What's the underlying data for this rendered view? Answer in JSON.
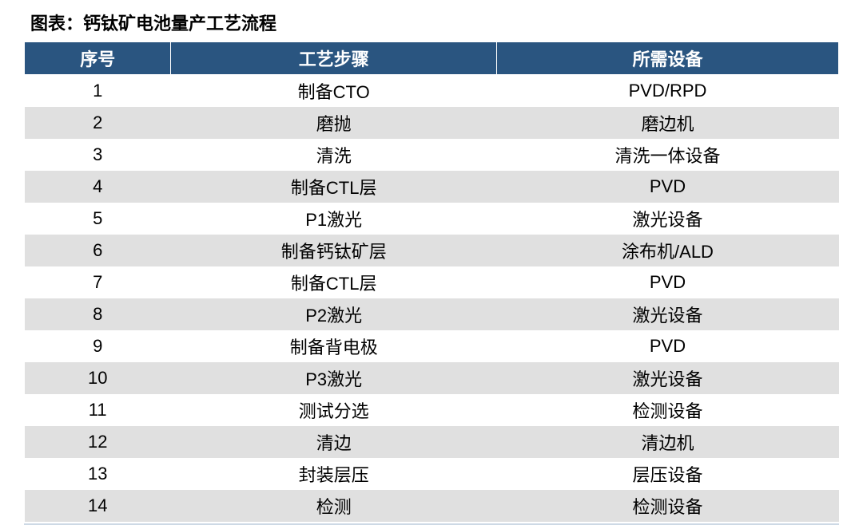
{
  "title": "图表：钙钛矿电池量产工艺流程",
  "table": {
    "type": "table",
    "header_bg": "#2a5580",
    "header_fg": "#ffffff",
    "row_odd_bg": "#ffffff",
    "row_even_bg": "#e0e0e0",
    "title_fontsize": 22,
    "header_fontsize": 22,
    "cell_fontsize": 22,
    "columns": [
      {
        "label": "序号",
        "width_pct": 18,
        "align": "center"
      },
      {
        "label": "工艺步骤",
        "width_pct": 40,
        "align": "center"
      },
      {
        "label": "所需设备",
        "width_pct": 42,
        "align": "center"
      }
    ],
    "rows": [
      [
        "1",
        "制备CTO",
        "PVD/RPD"
      ],
      [
        "2",
        "磨抛",
        "磨边机"
      ],
      [
        "3",
        "清洗",
        "清洗一体设备"
      ],
      [
        "4",
        "制备CTL层",
        "PVD"
      ],
      [
        "5",
        "P1激光",
        "激光设备"
      ],
      [
        "6",
        "制备钙钛矿层",
        "涂布机/ALD"
      ],
      [
        "7",
        "制备CTL层",
        "PVD"
      ],
      [
        "8",
        "P2激光",
        "激光设备"
      ],
      [
        "9",
        "制备背电极",
        "PVD"
      ],
      [
        "10",
        "P3激光",
        "激光设备"
      ],
      [
        "11",
        "测试分选",
        "检测设备"
      ],
      [
        "12",
        "清边",
        "清边机"
      ],
      [
        "13",
        "封装层压",
        "层压设备"
      ],
      [
        "14",
        "检测",
        "检测设备"
      ]
    ]
  },
  "bottom_line_color": "#cdd9e5"
}
